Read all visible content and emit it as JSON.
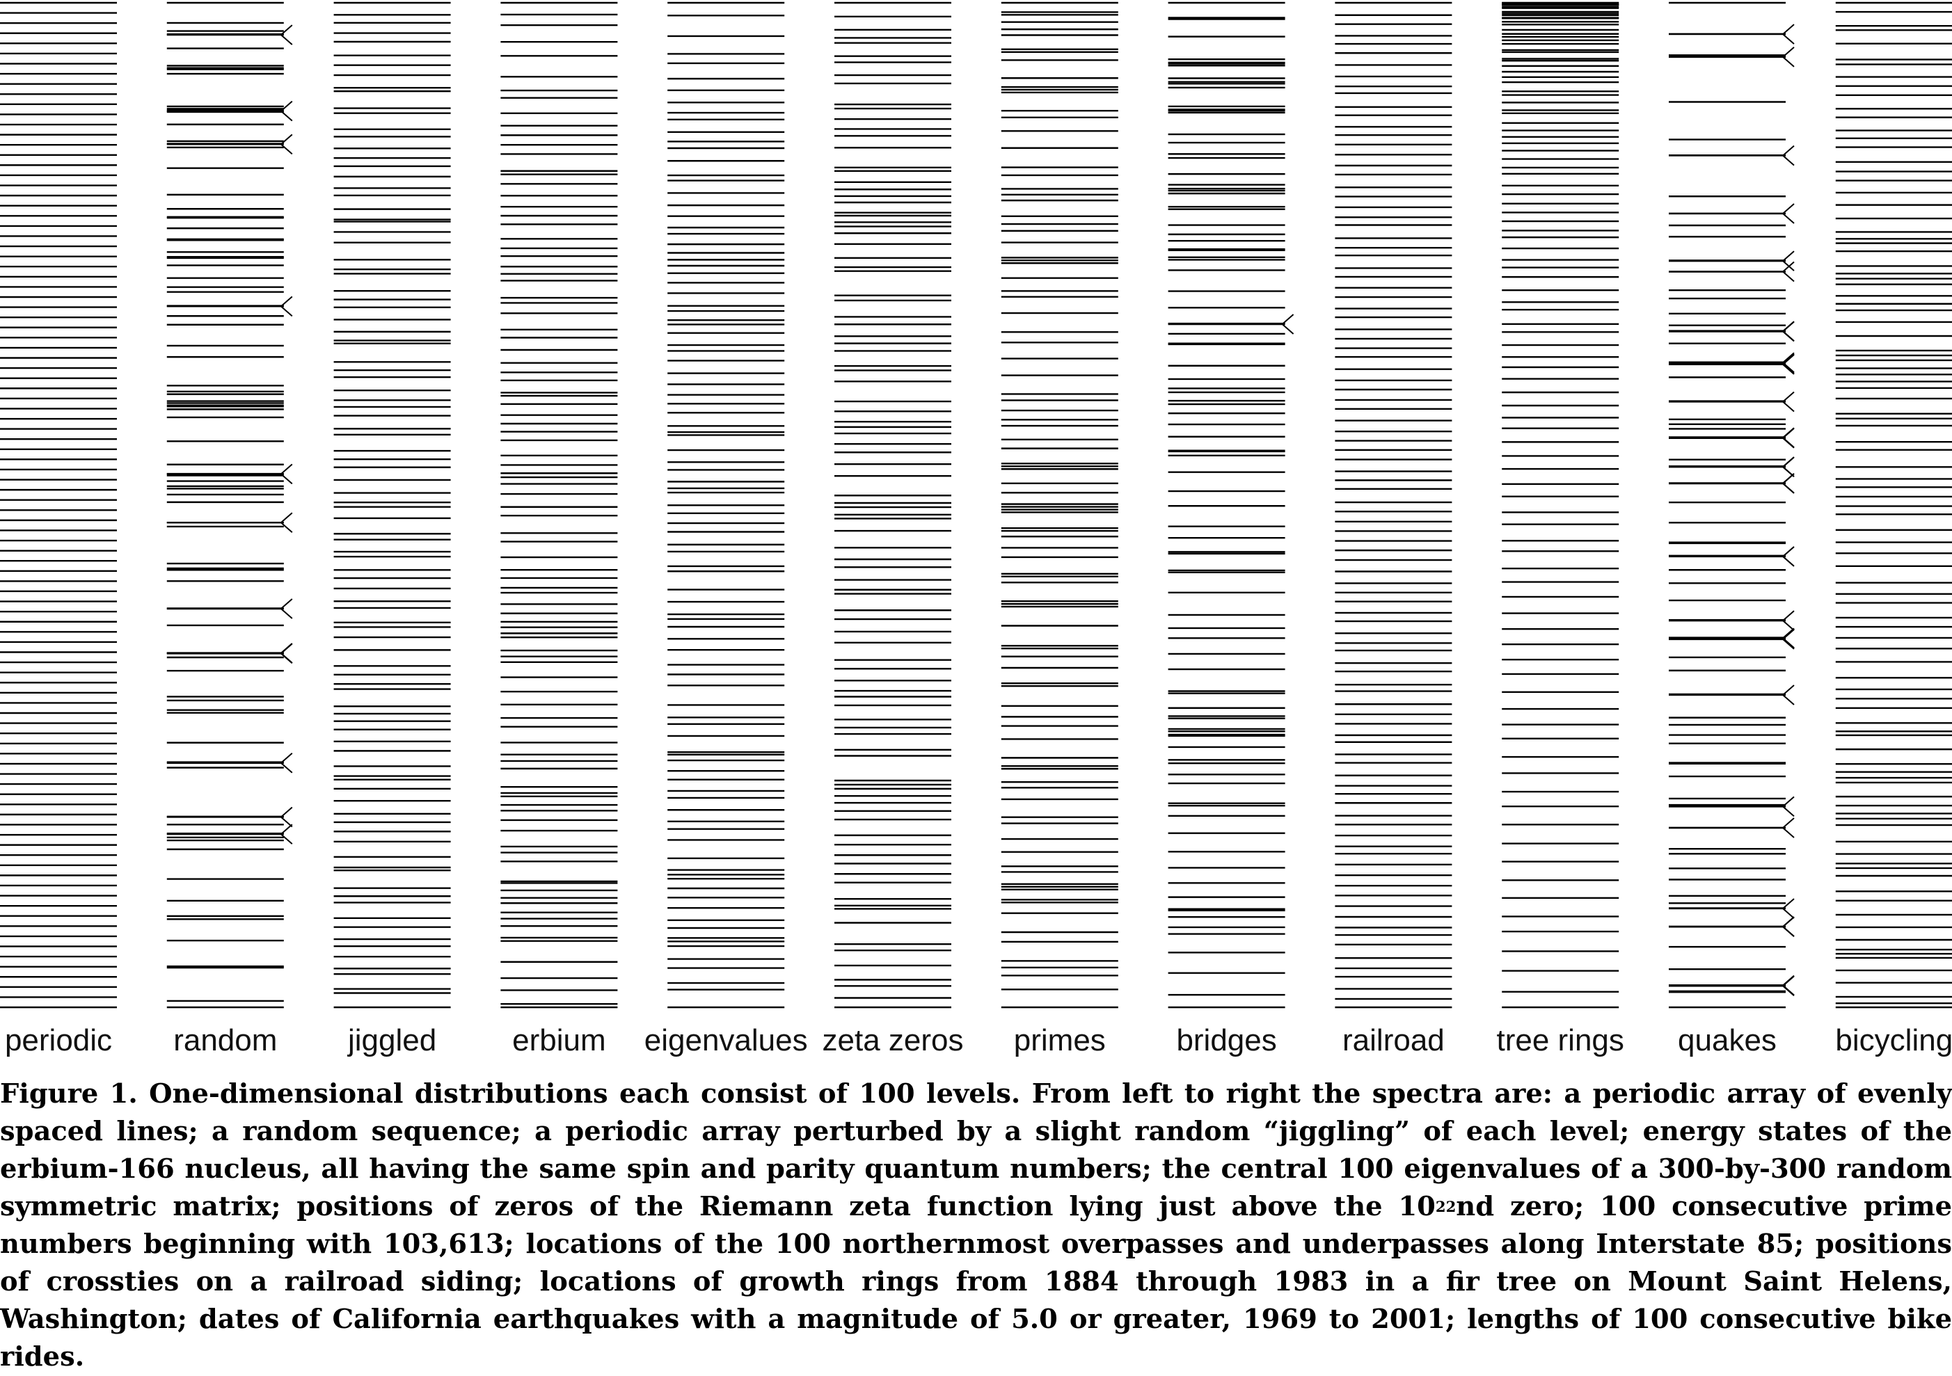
{
  "figure": {
    "columns": [
      {
        "label": "periodic"
      },
      {
        "label": "random"
      },
      {
        "label": "jiggled"
      },
      {
        "label": "erbium"
      },
      {
        "label": "eigenvalues"
      },
      {
        "label": "zeta zeros"
      },
      {
        "label": "primes"
      },
      {
        "label": "bridges"
      },
      {
        "label": "railroad"
      },
      {
        "label": "tree rings"
      },
      {
        "label": "quakes"
      },
      {
        "label": "bicycling"
      }
    ],
    "levels_per_column": 100,
    "line_color": "#000000"
  },
  "caption": {
    "part1": "Figure 1. One-dimensional distributions each consist of 100 levels. From left to right the spectra are: a periodic array of evenly spaced lines; a random sequence; a periodic array perturbed by a slight random “jiggling” of each level; energy states of the erbium-166 nucleus, all having the same spin and parity quantum numbers; the central 100 eigenvalues of a 300-by-300 random symmetric matrix; positions of zeros of the Riemann zeta function lying just above the 10",
    "superscript": "22",
    "part2": "nd zero; 100 consecutive prime numbers beginning with 103,613; locations of the 100 northernmost overpasses and underpasses along Interstate 85; positions of crossties on a railroad siding; locations of growth rings from 1884 through 1983 in a fir tree on Mount Saint Helens, Washington; dates of California earthquakes with a magnitude of 5.0 or greater, 1969 to 2001; lengths of 100 consecutive bike rides."
  }
}
